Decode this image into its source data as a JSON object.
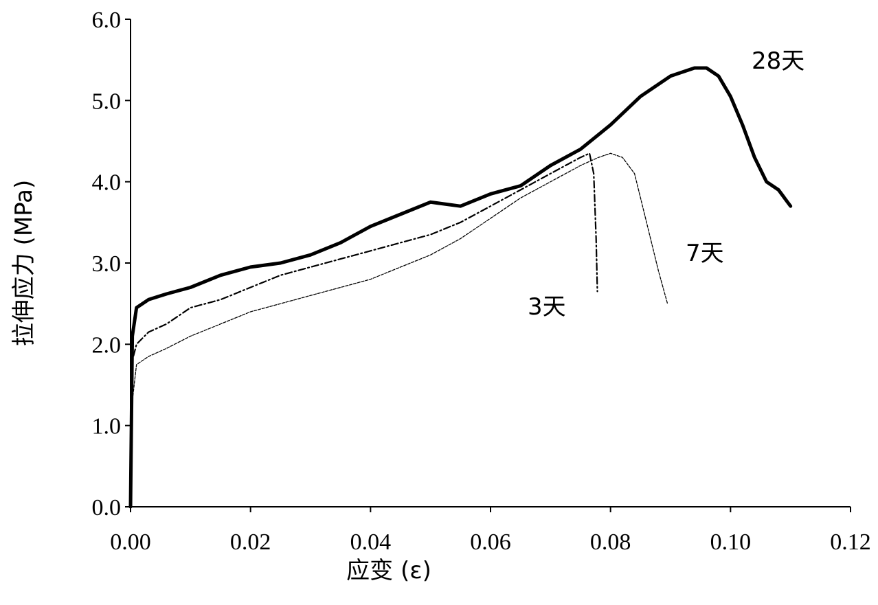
{
  "chart_data": {
    "type": "line",
    "xlabel": "应变 (ε)",
    "ylabel": "拉伸应力 (MPa)",
    "xlim": [
      0,
      0.12
    ],
    "ylim": [
      0,
      6.0
    ],
    "x_ticks": [
      "0.00",
      "0.02",
      "0.04",
      "0.06",
      "0.08",
      "0.10",
      "0.12"
    ],
    "y_ticks": [
      "0.0",
      "1.0",
      "2.0",
      "3.0",
      "4.0",
      "5.0",
      "6.0"
    ],
    "grid": false,
    "legend": "none",
    "series": [
      {
        "name": "3天",
        "style": "dash-dot",
        "color": "#000000",
        "x": [
          0,
          0.0003,
          0.001,
          0.003,
          0.006,
          0.01,
          0.015,
          0.02,
          0.025,
          0.03,
          0.035,
          0.04,
          0.045,
          0.05,
          0.055,
          0.06,
          0.065,
          0.07,
          0.075,
          0.0765,
          0.0772,
          0.0776,
          0.0778
        ],
        "y": [
          0,
          1.8,
          2.0,
          2.15,
          2.25,
          2.45,
          2.55,
          2.7,
          2.85,
          2.95,
          3.05,
          3.15,
          3.25,
          3.35,
          3.5,
          3.7,
          3.9,
          4.1,
          4.3,
          4.35,
          4.1,
          3.3,
          2.65
        ]
      },
      {
        "name": "7天",
        "style": "dashed",
        "color": "#000000",
        "x": [
          0,
          0.0003,
          0.001,
          0.003,
          0.006,
          0.01,
          0.015,
          0.02,
          0.025,
          0.03,
          0.035,
          0.04,
          0.045,
          0.05,
          0.055,
          0.06,
          0.065,
          0.07,
          0.075,
          0.078,
          0.08,
          0.082,
          0.084,
          0.086,
          0.088,
          0.0895
        ],
        "y": [
          0,
          1.3,
          1.75,
          1.85,
          1.95,
          2.1,
          2.25,
          2.4,
          2.5,
          2.6,
          2.7,
          2.8,
          2.95,
          3.1,
          3.3,
          3.55,
          3.8,
          4.0,
          4.2,
          4.3,
          4.35,
          4.3,
          4.1,
          3.5,
          2.9,
          2.5
        ]
      },
      {
        "name": "28天",
        "style": "solid-thick",
        "color": "#000000",
        "x": [
          0,
          0.0003,
          0.001,
          0.003,
          0.006,
          0.01,
          0.015,
          0.02,
          0.025,
          0.03,
          0.035,
          0.04,
          0.045,
          0.05,
          0.055,
          0.06,
          0.065,
          0.07,
          0.075,
          0.08,
          0.085,
          0.09,
          0.094,
          0.096,
          0.098,
          0.1,
          0.102,
          0.104,
          0.106,
          0.108,
          0.11
        ],
        "y": [
          0,
          2.1,
          2.45,
          2.55,
          2.62,
          2.7,
          2.85,
          2.95,
          3.0,
          3.1,
          3.25,
          3.45,
          3.6,
          3.75,
          3.7,
          3.85,
          3.95,
          4.2,
          4.4,
          4.7,
          5.05,
          5.3,
          5.4,
          5.4,
          5.3,
          5.05,
          4.7,
          4.3,
          4.0,
          3.9,
          3.7
        ]
      }
    ]
  }
}
